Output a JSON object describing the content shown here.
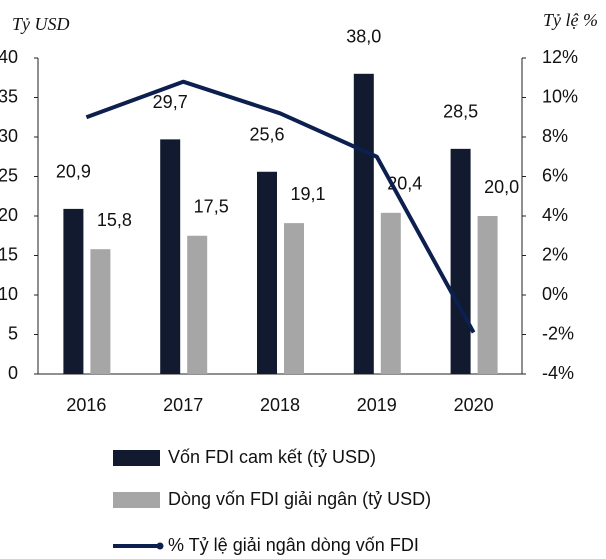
{
  "chart_data": {
    "type": "bar",
    "ylabel": "Tỷ USD",
    "y2label": "Tỷ lệ %",
    "categories": [
      "2016",
      "2017",
      "2018",
      "2019",
      "2020"
    ],
    "series": [
      {
        "name": "Vốn FDI cam kết (tỷ USD)",
        "color": "#111a2e",
        "values": [
          20.9,
          29.7,
          25.6,
          38.0,
          28.5
        ],
        "value_labels": [
          "20,9",
          "29,7",
          "25,6",
          "38,0",
          "28,5"
        ]
      },
      {
        "name": "Dòng vốn FDI giải ngân (tỷ USD)",
        "color": "#a6a6a6",
        "values": [
          15.8,
          17.5,
          19.1,
          20.4,
          20.0
        ],
        "value_labels": [
          "15,8",
          "17,5",
          "19,1",
          "20,4",
          "20,0"
        ]
      },
      {
        "name": "% Tỷ lệ giải ngân dòng vốn FDI",
        "type": "line",
        "axis": "y2",
        "color": "#0d1f4f",
        "values": [
          9.0,
          10.8,
          9.2,
          7.0,
          -1.9
        ]
      }
    ],
    "ylim": [
      0,
      40
    ],
    "yticks": [
      0,
      5,
      10,
      15,
      20,
      25,
      30,
      35,
      40
    ],
    "y2lim": [
      -4,
      12
    ],
    "y2ticks": [
      {
        "value": -4,
        "label": "-4%"
      },
      {
        "value": -2,
        "label": "-2%"
      },
      {
        "value": 0,
        "label": "0%"
      },
      {
        "value": 2,
        "label": "2%"
      },
      {
        "value": 4,
        "label": "4%"
      },
      {
        "value": 6,
        "label": "6%"
      },
      {
        "value": 8,
        "label": "8%"
      },
      {
        "value": 10,
        "label": "10%"
      },
      {
        "value": 12,
        "label": "12%"
      }
    ],
    "legend": "bottom"
  }
}
